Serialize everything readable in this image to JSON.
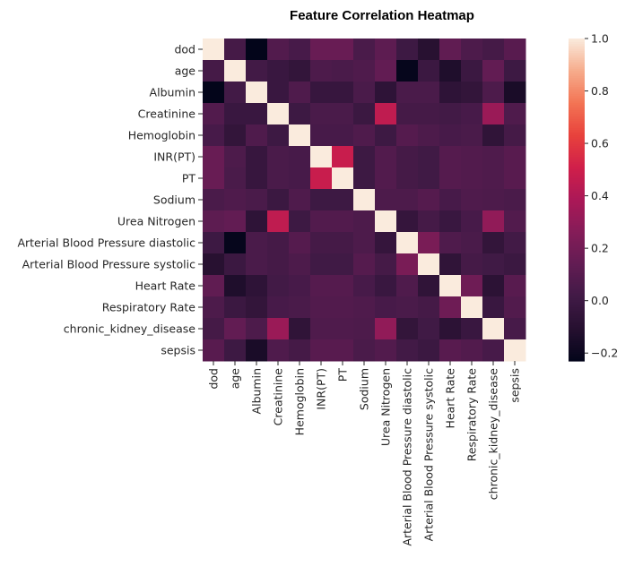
{
  "chart_data": {
    "type": "heatmap",
    "title": "Feature Correlation Heatmap",
    "labels": [
      "dod",
      "age",
      "Albumin",
      "Creatinine",
      "Hemoglobin",
      "INR(PT)",
      "PT",
      "Sodium",
      "Urea Nitrogen",
      "Arterial Blood Pressure diastolic",
      "Arterial Blood Pressure systolic",
      "Heart Rate",
      "Respiratory Rate",
      "chronic_kidney_disease",
      "sepsis"
    ],
    "matrix": [
      [
        1.0,
        0.03,
        -0.23,
        0.08,
        0.04,
        0.16,
        0.16,
        0.05,
        0.12,
        0.0,
        -0.1,
        0.13,
        0.06,
        0.03,
        0.1
      ],
      [
        0.03,
        1.0,
        0.02,
        -0.02,
        -0.05,
        0.06,
        0.05,
        0.07,
        0.14,
        -0.22,
        -0.01,
        -0.13,
        -0.01,
        0.14,
        0.0
      ],
      [
        -0.23,
        0.02,
        1.0,
        -0.02,
        0.07,
        -0.03,
        -0.03,
        0.05,
        -0.07,
        0.05,
        0.05,
        -0.07,
        -0.05,
        0.06,
        -0.15
      ],
      [
        0.08,
        -0.02,
        -0.02,
        1.0,
        0.0,
        0.05,
        0.05,
        -0.01,
        0.45,
        0.03,
        0.03,
        0.02,
        0.04,
        0.33,
        0.07
      ],
      [
        0.04,
        -0.05,
        0.07,
        0.0,
        1.0,
        0.04,
        0.04,
        0.07,
        0.0,
        0.09,
        0.06,
        0.04,
        0.05,
        -0.06,
        0.03
      ],
      [
        0.16,
        0.06,
        -0.03,
        0.05,
        0.04,
        1.0,
        0.48,
        0.0,
        0.08,
        0.03,
        0.01,
        0.09,
        0.08,
        0.07,
        0.1
      ],
      [
        0.16,
        0.05,
        -0.03,
        0.05,
        0.04,
        0.48,
        1.0,
        0.0,
        0.08,
        0.03,
        0.01,
        0.09,
        0.08,
        0.07,
        0.1
      ],
      [
        0.05,
        0.07,
        0.05,
        -0.01,
        0.07,
        0.0,
        0.0,
        1.0,
        0.06,
        0.06,
        0.09,
        0.04,
        0.07,
        0.06,
        0.05
      ],
      [
        0.12,
        0.14,
        -0.07,
        0.45,
        0.0,
        0.08,
        0.08,
        0.06,
        1.0,
        -0.04,
        0.03,
        -0.02,
        0.04,
        0.3,
        0.08
      ],
      [
        0.0,
        -0.22,
        0.05,
        0.03,
        0.09,
        0.03,
        0.03,
        0.06,
        -0.04,
        1.0,
        0.22,
        0.07,
        0.05,
        -0.05,
        0.02
      ],
      [
        -0.1,
        -0.01,
        0.05,
        0.03,
        0.06,
        0.01,
        0.01,
        0.09,
        0.03,
        0.22,
        1.0,
        -0.06,
        0.03,
        0.01,
        -0.01
      ],
      [
        0.13,
        -0.13,
        -0.07,
        0.02,
        0.04,
        0.09,
        0.09,
        0.04,
        -0.02,
        0.07,
        -0.06,
        1.0,
        0.18,
        -0.08,
        0.1
      ],
      [
        0.06,
        -0.01,
        -0.05,
        0.04,
        0.05,
        0.08,
        0.08,
        0.07,
        0.04,
        0.05,
        0.03,
        0.18,
        1.0,
        -0.02,
        0.08
      ],
      [
        0.03,
        0.14,
        0.06,
        0.33,
        -0.06,
        0.07,
        0.07,
        0.06,
        0.3,
        -0.05,
        0.01,
        -0.08,
        -0.02,
        1.0,
        0.04
      ],
      [
        0.1,
        0.0,
        -0.15,
        0.07,
        0.03,
        0.1,
        0.1,
        0.05,
        0.08,
        0.02,
        -0.01,
        0.1,
        0.08,
        0.04,
        1.0
      ]
    ],
    "vmin": -0.23,
    "vmax": 1.0,
    "colorbar_ticks": [
      1.0,
      0.8,
      0.6,
      0.4,
      0.2,
      0.0,
      -0.2
    ],
    "colorbar_tick_labels": [
      "1.0",
      "0.8",
      "0.6",
      "0.4",
      "0.2",
      "0.0",
      "−0.2"
    ],
    "colormap": "rocket"
  }
}
